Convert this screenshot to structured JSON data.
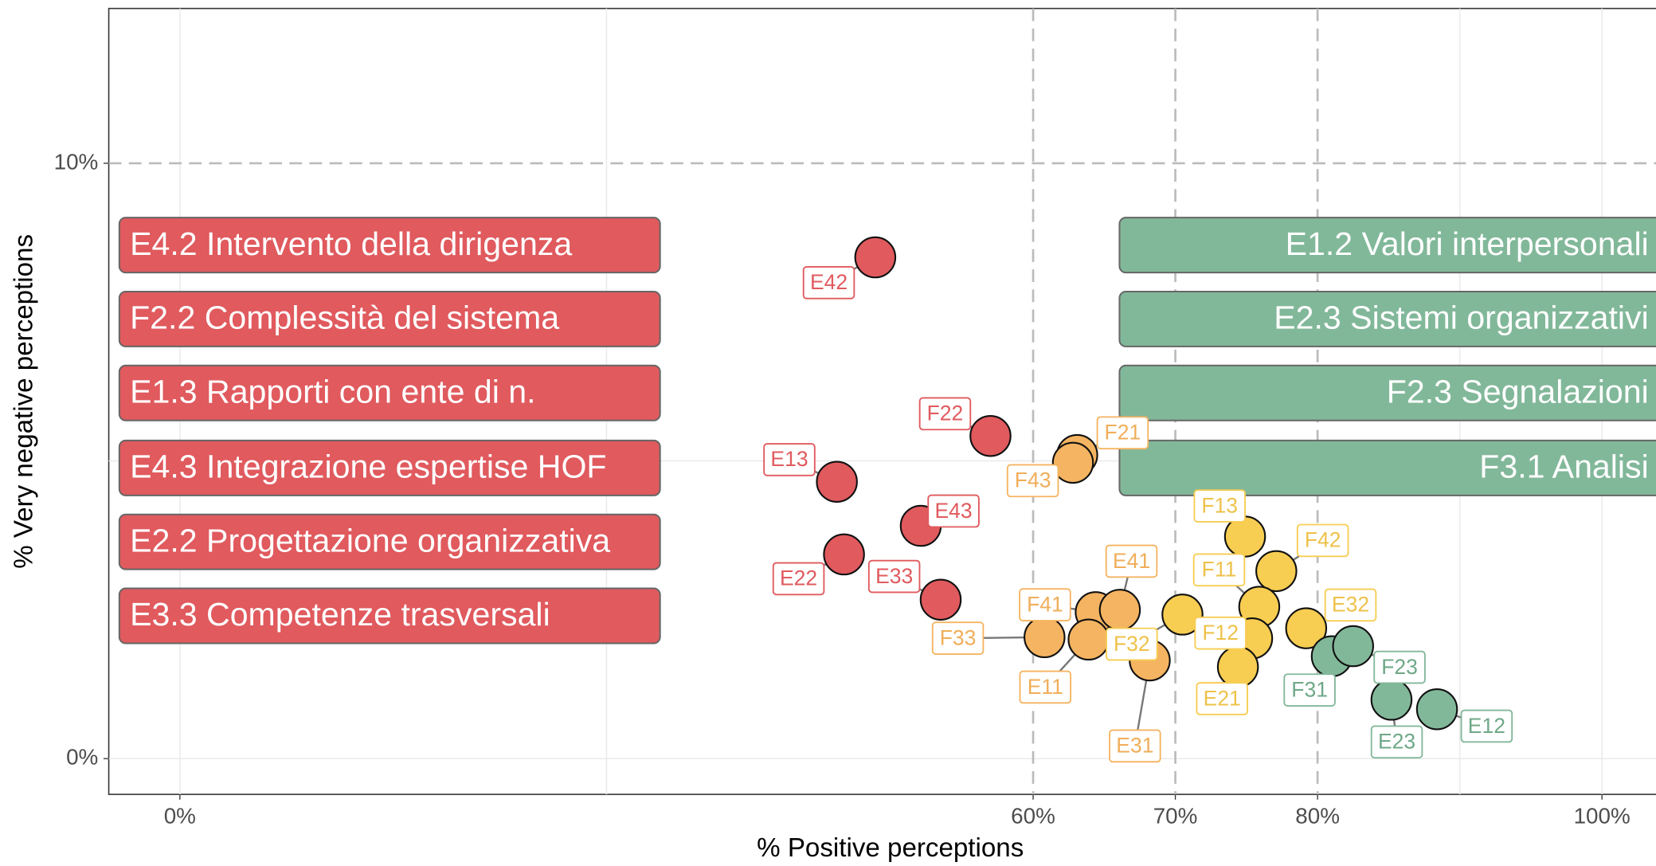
{
  "chart_data": {
    "type": "scatter",
    "x_label": "% Positive perceptions",
    "y_label": "% Very negative perceptions",
    "xlim": [
      -5,
      103.8
    ],
    "ylim": [
      -0.6,
      12.6
    ],
    "xticks": [
      {
        "value": 0,
        "label": "0%"
      },
      {
        "value": 60,
        "label": "60%"
      },
      {
        "value": 70,
        "label": "70%"
      },
      {
        "value": 80,
        "label": "80%"
      },
      {
        "value": 100,
        "label": "100%"
      }
    ],
    "yticks": [
      {
        "value": 0,
        "label": "0%"
      },
      {
        "value": 10,
        "label": "10%"
      }
    ],
    "minor_grid_x": [
      0,
      30,
      90,
      100
    ],
    "minor_grid_y": [
      0,
      5
    ],
    "dashed_x": [
      60,
      70,
      80
    ],
    "dashed_y": [
      10
    ],
    "series": [
      {
        "color": "#e05a5e",
        "labels": [
          "E42",
          "F22",
          "E13",
          "E43",
          "E22",
          "E33"
        ],
        "x": [
          48.9,
          57.0,
          46.2,
          52.1,
          46.7,
          53.5
        ],
        "values": [
          8.42,
          5.42,
          4.65,
          3.91,
          3.43,
          2.67
        ]
      },
      {
        "color": "#f5b461",
        "labels": [
          "F21",
          "F43",
          "F33",
          "F41",
          "E41",
          "E11",
          "E31"
        ],
        "x": [
          63.1,
          62.8,
          60.8,
          64.4,
          66.1,
          63.9,
          68.2
        ],
        "values": [
          5.1,
          4.97,
          2.04,
          2.46,
          2.5,
          2.0,
          1.65
        ]
      },
      {
        "color": "#f7cd52",
        "labels": [
          "F32",
          "F13",
          "F42",
          "F11",
          "F12",
          "E21",
          "E32"
        ],
        "x": [
          70.5,
          74.9,
          77.1,
          75.9,
          75.4,
          74.4,
          79.2
        ],
        "values": [
          2.42,
          3.73,
          3.15,
          2.55,
          2.02,
          1.54,
          2.19
        ]
      },
      {
        "color": "#82b89a",
        "labels": [
          "F31",
          "F23",
          "E23",
          "E12"
        ],
        "x": [
          81.0,
          82.5,
          85.2,
          88.4
        ],
        "values": [
          1.72,
          1.89,
          0.99,
          0.83
        ]
      }
    ],
    "annotation_groups": [
      {
        "side": "left",
        "color": "#e05a5e",
        "items": [
          "E4.2 Intervento della dirigenza",
          "F2.2 Complessità del sistema",
          "E1.3 Rapporti con ente di n.",
          "E4.3 Integrazione espertise HOF",
          "E2.2 Progettazione organizzativa",
          "E3.3 Competenze trasversali"
        ]
      },
      {
        "side": "right",
        "color": "#82b89a",
        "items": [
          "E1.2 Valori interpersonali",
          "E2.3 Sistemi organizzativi",
          "F2.3 Segnalazioni",
          "F3.1 Analisi"
        ]
      }
    ]
  }
}
